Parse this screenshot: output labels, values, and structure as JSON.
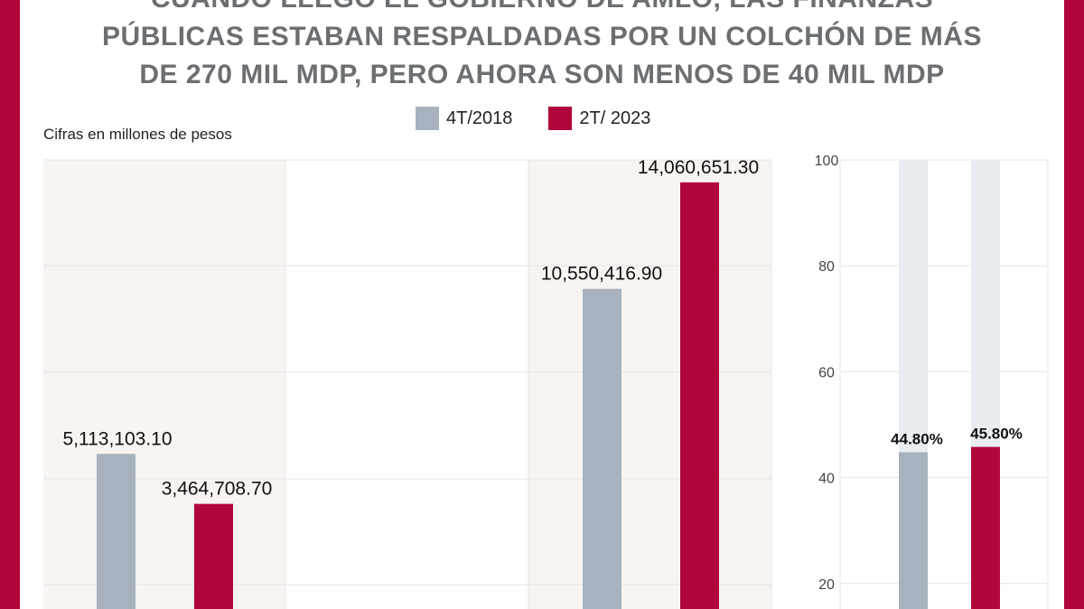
{
  "title": "CUANDO LLEGÓ EL GOBIERNO DE AMLO, LAS FINANZAS\nPÚBLICAS ESTABAN RESPALDADAS POR UN COLCHÓN DE MÁS\nDE 270 MIL MDP, PERO AHORA SON MENOS DE 40 MIL MDP",
  "subtitle": "Cifras en millones de pesos",
  "colors": {
    "frame": "#b1063a",
    "series_2018": "#a8b2bf",
    "series_2023": "#b1063a",
    "panel_shade": "#f8f4f2",
    "track": "#e9edf1",
    "grid": "#e6e6e6"
  },
  "legend": [
    {
      "label": "4T/2018",
      "color": "#a8b2bf"
    },
    {
      "label": "2T/ 2023",
      "color": "#b1063a"
    }
  ],
  "chart_data": [
    {
      "type": "bar",
      "title": "",
      "categories": [
        "",
        ""
      ],
      "series": [
        {
          "name": "4T/2018",
          "values": [
            5113103.1,
            10550416.9
          ],
          "labels": [
            "5,113,103.10",
            "10,550,416.90"
          ]
        },
        {
          "name": "2T/ 2023",
          "values": [
            3464708.7,
            14060651.3
          ],
          "labels": [
            "3,464,708.70",
            "14,060,651.30"
          ]
        }
      ],
      "ylim": [
        0,
        14800000
      ],
      "grid": true
    },
    {
      "type": "bar",
      "title": "",
      "categories": [
        ""
      ],
      "series": [
        {
          "name": "4T/2018",
          "values": [
            44.8
          ],
          "labels": [
            "44.80%"
          ]
        },
        {
          "name": "2T/ 2023",
          "values": [
            45.8
          ],
          "labels": [
            "45.80%"
          ]
        }
      ],
      "yticks": [
        "100",
        "80",
        "60",
        "40",
        "20"
      ],
      "ylim": [
        15,
        100
      ],
      "grid": true
    }
  ]
}
